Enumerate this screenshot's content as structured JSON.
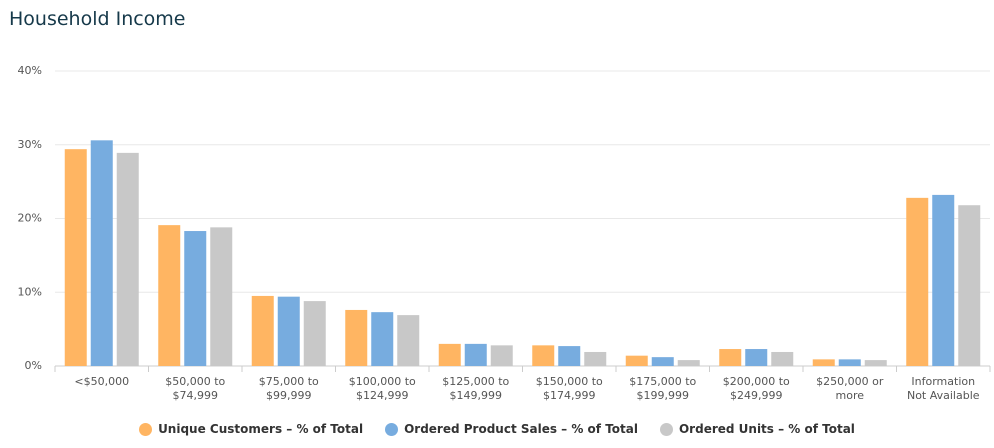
{
  "chart_data": {
    "type": "bar",
    "title": "Household Income",
    "categories": [
      "<$50,000",
      "$50,000 to $74,999",
      "$75,000 to $99,999",
      "$100,000 to $124,999",
      "$125,000 to $149,999",
      "$150,000 to $174,999",
      "$175,000 to $199,999",
      "$200,000 to $249,999",
      "$250,000 or more",
      "Information Not Available"
    ],
    "series": [
      {
        "name": "Unique Customers – % of Total",
        "color": "#ffb562",
        "values": [
          29.4,
          19.1,
          9.5,
          7.6,
          3.0,
          2.8,
          1.4,
          2.3,
          0.9,
          22.8
        ]
      },
      {
        "name": "Ordered Product Sales – % of Total",
        "color": "#77acdf",
        "values": [
          30.6,
          18.3,
          9.4,
          7.3,
          3.0,
          2.7,
          1.2,
          2.3,
          0.9,
          23.2
        ]
      },
      {
        "name": "Ordered Units – % of Total",
        "color": "#c8c8c8",
        "values": [
          28.9,
          18.8,
          8.8,
          6.9,
          2.8,
          1.9,
          0.8,
          1.9,
          0.8,
          21.8
        ]
      }
    ],
    "ylim": [
      0,
      40
    ],
    "yticks": [
      {
        "value": 0,
        "label": "0%"
      },
      {
        "value": 10,
        "label": "10%"
      },
      {
        "value": 20,
        "label": "20%"
      },
      {
        "value": 30,
        "label": "30%"
      },
      {
        "value": 40,
        "label": "40%"
      }
    ],
    "grid": true,
    "legend": "bottom"
  }
}
